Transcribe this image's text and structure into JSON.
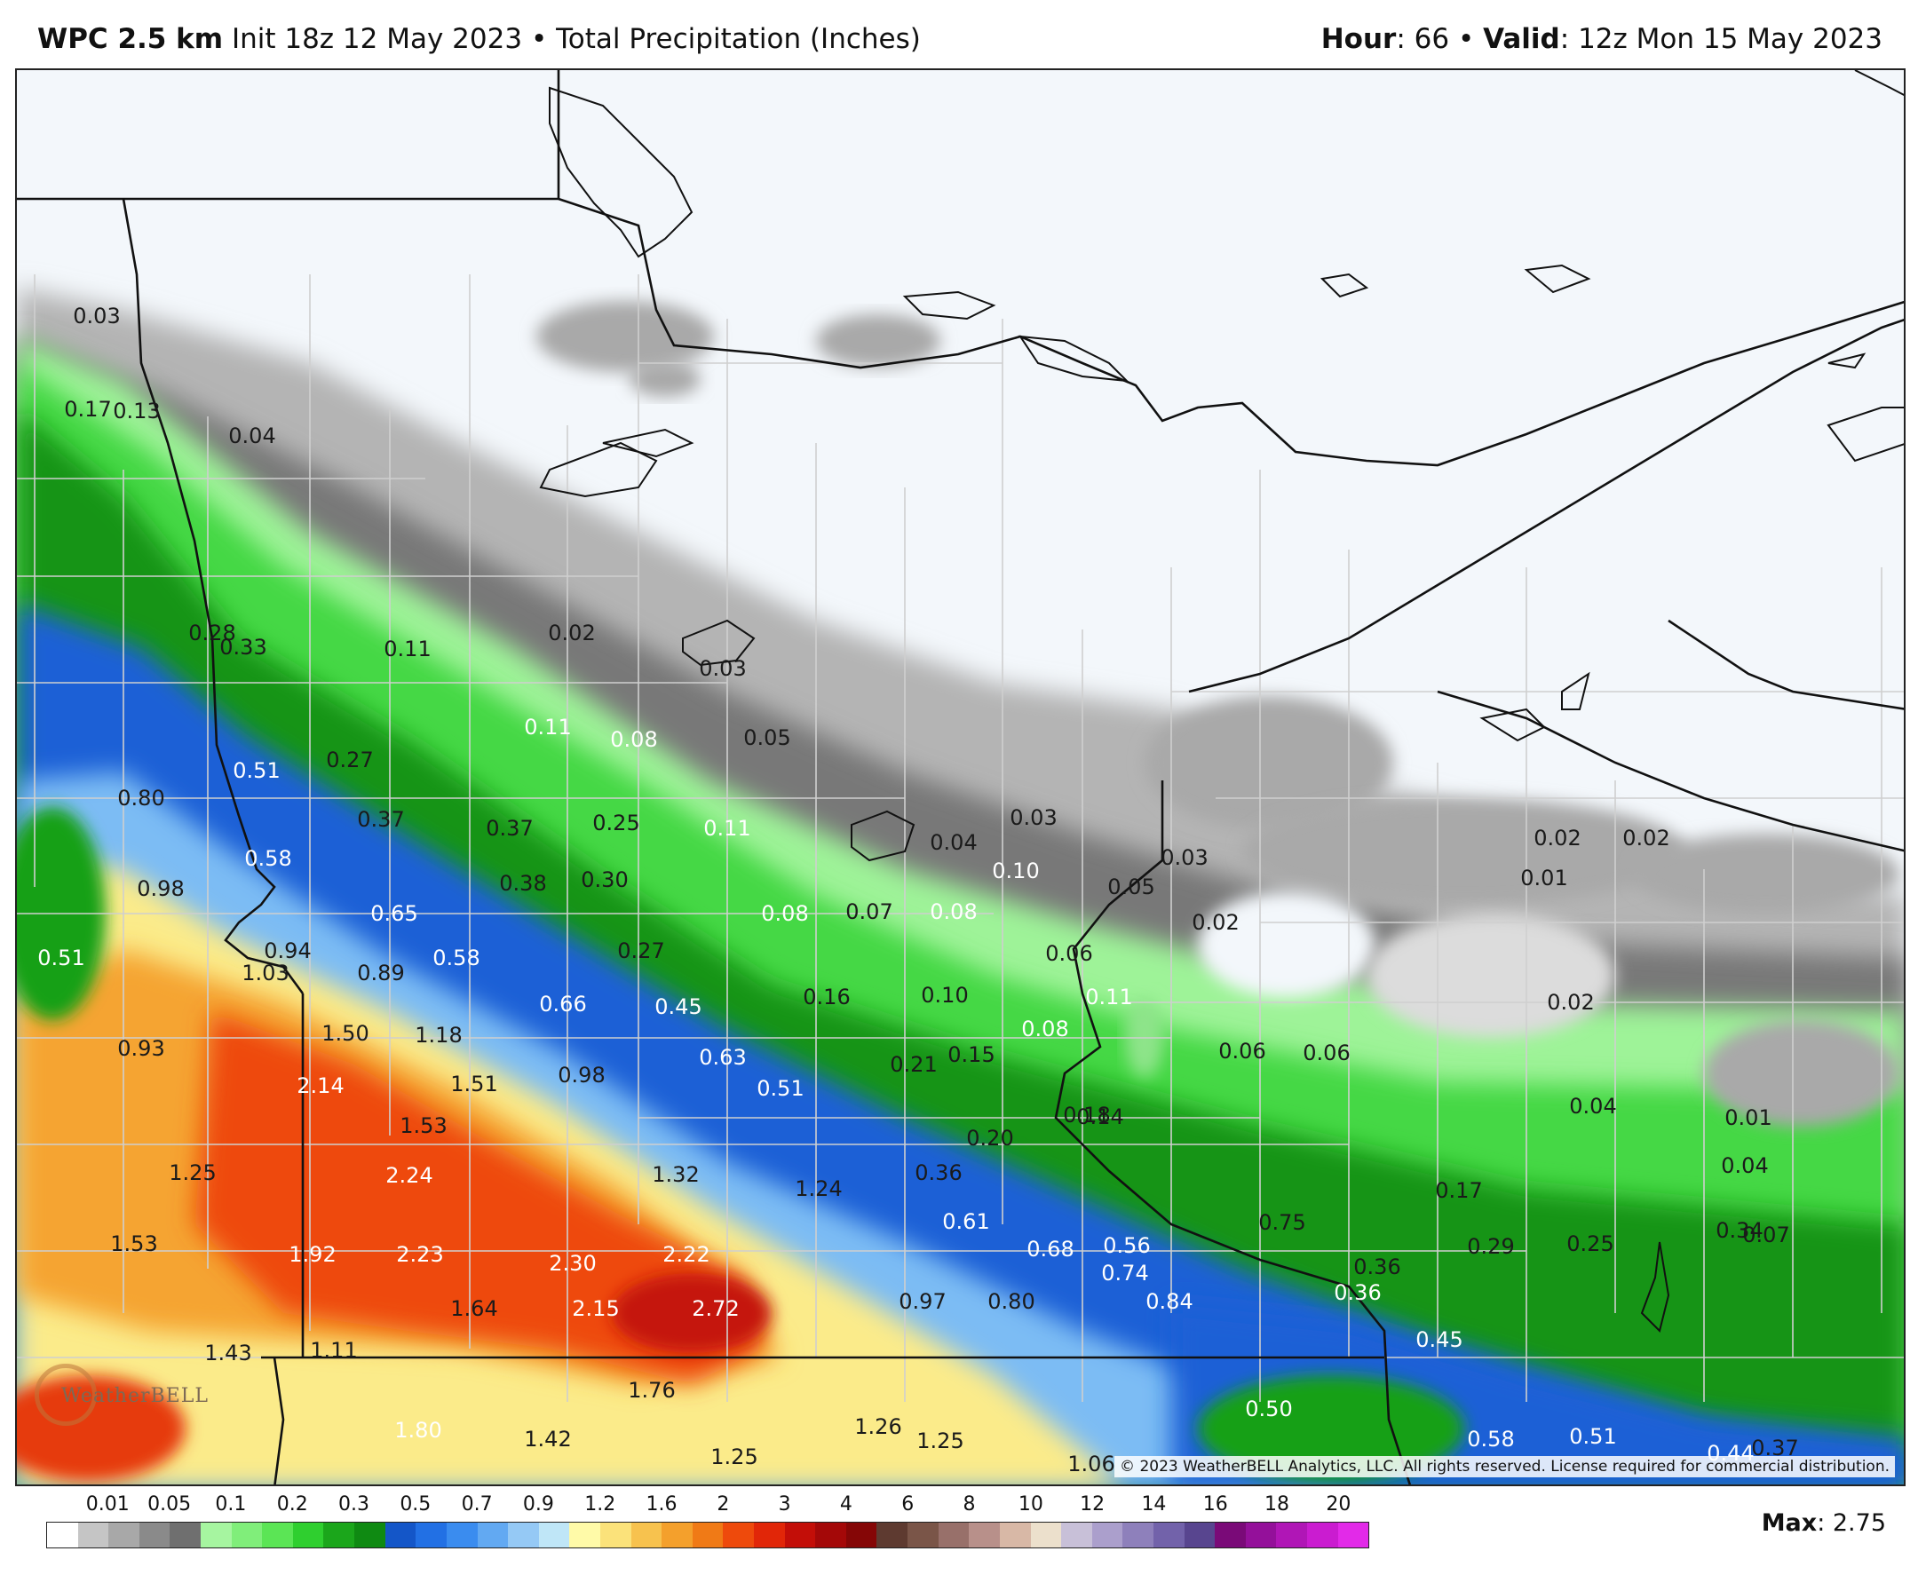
{
  "header": {
    "model": "WPC 2.5 km",
    "init": "Init 18z 12 May 2023",
    "separator": "•",
    "product": "Total Precipitation (Inches)",
    "hour_label": "Hour",
    "hour_value": ": 66",
    "valid_label": "Valid",
    "valid_value": ": 12z Mon 15 May 2023"
  },
  "copyright": "© 2023 WeatherBELL Analytics, LLC. All rights reserved. License required for commercial distribution.",
  "logo_text": "WeatherBELL",
  "legend": {
    "ticks": [
      "0.01",
      "0.05",
      "0.1",
      "0.2",
      "0.3",
      "0.5",
      "0.7",
      "0.9",
      "1.2",
      "1.6",
      "2",
      "3",
      "4",
      "6",
      "8",
      "10",
      "12",
      "14",
      "16",
      "18",
      "20"
    ],
    "colors": [
      "#ffffff",
      "#c5c5c5",
      "#a8a8a8",
      "#8a8a8a",
      "#6f6f6f",
      "#a6f5a0",
      "#80ee7a",
      "#5be555",
      "#2fcf2f",
      "#1ba61b",
      "#0f8a12",
      "#1456c8",
      "#2270e4",
      "#3a8cef",
      "#62a9f2",
      "#95c9f5",
      "#bfe6f7",
      "#fffaa8",
      "#fbe27a",
      "#f7c24e",
      "#f4a02c",
      "#f07a16",
      "#ee4a0c",
      "#e12608",
      "#c30e08",
      "#a40808",
      "#850606",
      "#5e3a30",
      "#7a5548",
      "#98706a",
      "#b8908a",
      "#d8b8a6",
      "#ece0cc",
      "#c8c0d8",
      "#ab9fcc",
      "#8e80bb",
      "#7262aa",
      "#58458f",
      "#7a0a78",
      "#94109a",
      "#b016b6",
      "#ca1cd0",
      "#e22ae8"
    ],
    "max_label": "Max",
    "max_value": ": 2.75"
  },
  "map": {
    "values": [
      {
        "t": "0.03",
        "c": "d"
      },
      {
        "t": "0.17",
        "c": "d"
      },
      {
        "t": "0.13",
        "c": "d"
      },
      {
        "t": "0.04",
        "c": "d"
      },
      {
        "t": "0.28",
        "c": "d"
      },
      {
        "t": "0.33",
        "c": "d"
      },
      {
        "t": "0.11",
        "c": "d"
      },
      {
        "t": "0.02",
        "c": "d"
      },
      {
        "t": "0.03",
        "c": "d"
      },
      {
        "t": "0.11",
        "c": "w"
      },
      {
        "t": "0.08",
        "c": "w"
      },
      {
        "t": "0.05",
        "c": "d"
      },
      {
        "t": "0.51",
        "c": "w"
      },
      {
        "t": "0.27",
        "c": "d"
      },
      {
        "t": "0.80",
        "c": "d"
      },
      {
        "t": "0.37",
        "c": "d"
      },
      {
        "t": "0.37",
        "c": "d"
      },
      {
        "t": "0.25",
        "c": "d"
      },
      {
        "t": "0.11",
        "c": "w"
      },
      {
        "t": "0.03",
        "c": "d"
      },
      {
        "t": "0.04",
        "c": "d"
      },
      {
        "t": "0.03",
        "c": "d"
      },
      {
        "t": "0.02",
        "c": "d"
      },
      {
        "t": "0.02",
        "c": "d"
      },
      {
        "t": "0.58",
        "c": "w"
      },
      {
        "t": "0.98",
        "c": "d"
      },
      {
        "t": "0.38",
        "c": "d"
      },
      {
        "t": "0.30",
        "c": "d"
      },
      {
        "t": "0.10",
        "c": "w"
      },
      {
        "t": "0.05",
        "c": "d"
      },
      {
        "t": "0.01",
        "c": "d"
      },
      {
        "t": "0.65",
        "c": "w"
      },
      {
        "t": "0.08",
        "c": "w"
      },
      {
        "t": "0.07",
        "c": "d"
      },
      {
        "t": "0.08",
        "c": "w"
      },
      {
        "t": "0.02",
        "c": "d"
      },
      {
        "t": "0.51",
        "c": "w"
      },
      {
        "t": "0.94",
        "c": "d"
      },
      {
        "t": "1.03",
        "c": "d"
      },
      {
        "t": "0.89",
        "c": "d"
      },
      {
        "t": "0.58",
        "c": "w"
      },
      {
        "t": "0.27",
        "c": "d"
      },
      {
        "t": "0.06",
        "c": "d"
      },
      {
        "t": "0.66",
        "c": "w"
      },
      {
        "t": "0.45",
        "c": "w"
      },
      {
        "t": "0.16",
        "c": "d"
      },
      {
        "t": "0.10",
        "c": "d"
      },
      {
        "t": "0.11",
        "c": "w"
      },
      {
        "t": "0.02",
        "c": "d"
      },
      {
        "t": "0.93",
        "c": "d"
      },
      {
        "t": "1.50",
        "c": "d"
      },
      {
        "t": "1.18",
        "c": "d"
      },
      {
        "t": "0.08",
        "c": "w"
      },
      {
        "t": "0.63",
        "c": "w"
      },
      {
        "t": "0.21",
        "c": "d"
      },
      {
        "t": "0.15",
        "c": "d"
      },
      {
        "t": "0.06",
        "c": "d"
      },
      {
        "t": "0.06",
        "c": "d"
      },
      {
        "t": "2.14",
        "c": "w"
      },
      {
        "t": "1.51",
        "c": "d"
      },
      {
        "t": "0.98",
        "c": "d"
      },
      {
        "t": "0.51",
        "c": "w"
      },
      {
        "t": "0.18",
        "c": "d"
      },
      {
        "t": "0.14",
        "c": "d"
      },
      {
        "t": "0.04",
        "c": "d"
      },
      {
        "t": "0.01",
        "c": "d"
      },
      {
        "t": "1.53",
        "c": "d"
      },
      {
        "t": "0.20",
        "c": "d"
      },
      {
        "t": "2.24",
        "c": "w"
      },
      {
        "t": "0.04",
        "c": "d"
      },
      {
        "t": "1.25",
        "c": "d"
      },
      {
        "t": "1.32",
        "c": "d"
      },
      {
        "t": "0.36",
        "c": "d"
      },
      {
        "t": "1.24",
        "c": "d"
      },
      {
        "t": "0.17",
        "c": "d"
      },
      {
        "t": "0.61",
        "c": "w"
      },
      {
        "t": "0.75",
        "c": "d"
      },
      {
        "t": "0.34",
        "c": "d"
      },
      {
        "t": "0.07",
        "c": "d"
      },
      {
        "t": "1.53",
        "c": "d"
      },
      {
        "t": "1.92",
        "c": "w"
      },
      {
        "t": "2.23",
        "c": "w"
      },
      {
        "t": "2.22",
        "c": "w"
      },
      {
        "t": "0.68",
        "c": "w"
      },
      {
        "t": "0.56",
        "c": "w"
      },
      {
        "t": "0.29",
        "c": "d"
      },
      {
        "t": "0.25",
        "c": "d"
      },
      {
        "t": "2.30",
        "c": "w"
      },
      {
        "t": "0.74",
        "c": "w"
      },
      {
        "t": "0.36",
        "c": "d"
      },
      {
        "t": "0.97",
        "c": "d"
      },
      {
        "t": "0.80",
        "c": "d"
      },
      {
        "t": "0.84",
        "c": "w"
      },
      {
        "t": "1.64",
        "c": "d"
      },
      {
        "t": "2.15",
        "c": "w"
      },
      {
        "t": "2.72",
        "c": "w"
      },
      {
        "t": "1.43",
        "c": "d"
      },
      {
        "t": "1.11",
        "c": "d"
      },
      {
        "t": "0.45",
        "c": "w"
      },
      {
        "t": "0.36",
        "c": "w"
      },
      {
        "t": "1.76",
        "c": "d"
      },
      {
        "t": "0.50",
        "c": "w"
      },
      {
        "t": "1.80",
        "c": "w"
      },
      {
        "t": "1.26",
        "c": "d"
      },
      {
        "t": "1.42",
        "c": "d"
      },
      {
        "t": "1.25",
        "c": "d"
      },
      {
        "t": "0.58",
        "c": "w"
      },
      {
        "t": "0.51",
        "c": "w"
      },
      {
        "t": "0.44",
        "c": "w"
      },
      {
        "t": "0.37",
        "c": "d"
      },
      {
        "t": "1.25",
        "c": "d"
      },
      {
        "t": "1.06",
        "c": "d"
      }
    ]
  }
}
